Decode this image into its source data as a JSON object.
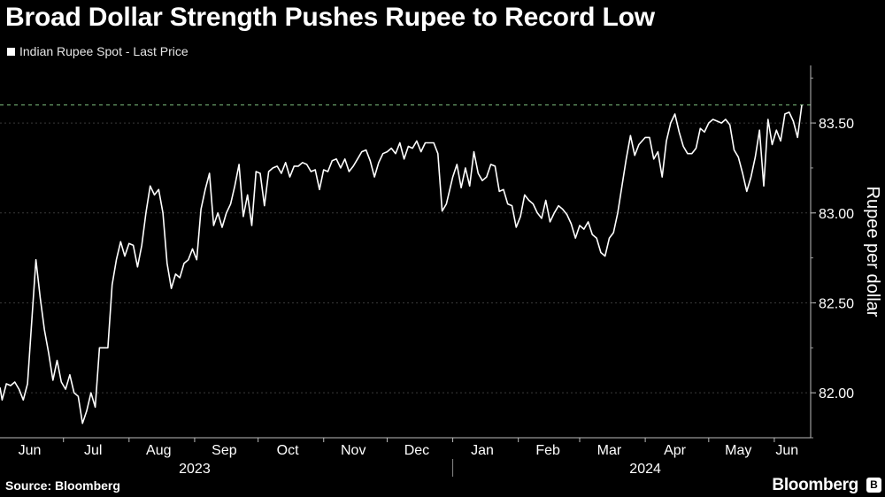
{
  "header": {
    "title": "Broad Dollar Strength Pushes Rupee to Record Low"
  },
  "legend": {
    "label": "Indian Rupee Spot - Last Price"
  },
  "footer": {
    "source": "Source: Bloomberg",
    "brand": "Bloomberg"
  },
  "colors": {
    "background": "#000000",
    "line": "#ffffff",
    "reference_line": "#7fbf7f",
    "gridline": "#3a3a3a"
  },
  "chart_data": {
    "type": "line",
    "title": "Broad Dollar Strength Pushes Rupee to Record Low",
    "series_name": "Indian Rupee Spot - Last Price",
    "ylabel": "Rupee per dollar",
    "xlabel": "",
    "ylim": [
      81.75,
      83.82
    ],
    "yticks": [
      82.0,
      82.5,
      83.0,
      83.5
    ],
    "ytick_labels": [
      "82.00",
      "82.50",
      "83.00",
      "83.50"
    ],
    "reference_line": 83.6,
    "x_start": "2023-06-01",
    "x_end": "2024-06-14",
    "month_ticks": [
      {
        "label": "Jun",
        "date": "2023-06-15"
      },
      {
        "label": "Jul",
        "date": "2023-07-15"
      },
      {
        "label": "Aug",
        "date": "2023-08-15"
      },
      {
        "label": "Sep",
        "date": "2023-09-15"
      },
      {
        "label": "Oct",
        "date": "2023-10-15"
      },
      {
        "label": "Nov",
        "date": "2023-11-15"
      },
      {
        "label": "Dec",
        "date": "2023-12-15"
      },
      {
        "label": "Jan",
        "date": "2024-01-15"
      },
      {
        "label": "Feb",
        "date": "2024-02-15"
      },
      {
        "label": "Mar",
        "date": "2024-03-15"
      },
      {
        "label": "Apr",
        "date": "2024-04-15"
      },
      {
        "label": "May",
        "date": "2024-05-15"
      },
      {
        "label": "Jun",
        "date": "2024-06-07"
      }
    ],
    "month_boundaries": [
      "2023-07-01",
      "2023-08-01",
      "2023-09-01",
      "2023-10-01",
      "2023-11-01",
      "2023-12-01",
      "2024-01-01",
      "2024-02-01",
      "2024-03-01",
      "2024-04-01",
      "2024-05-01",
      "2024-06-01"
    ],
    "year_labels": [
      {
        "label": "2023",
        "date": "2023-09-01"
      },
      {
        "label": "2024",
        "date": "2024-04-01"
      }
    ],
    "year_divider": "2024-01-01",
    "points": [
      [
        "2023-06-01",
        82.03
      ],
      [
        "2023-06-02",
        81.96
      ],
      [
        "2023-06-04",
        82.05
      ],
      [
        "2023-06-06",
        82.04
      ],
      [
        "2023-06-08",
        82.06
      ],
      [
        "2023-06-10",
        82.02
      ],
      [
        "2023-06-12",
        81.96
      ],
      [
        "2023-06-14",
        82.05
      ],
      [
        "2023-06-16",
        82.4
      ],
      [
        "2023-06-18",
        82.74
      ],
      [
        "2023-06-20",
        82.53
      ],
      [
        "2023-06-22",
        82.35
      ],
      [
        "2023-06-24",
        82.22
      ],
      [
        "2023-06-26",
        82.07
      ],
      [
        "2023-06-28",
        82.18
      ],
      [
        "2023-06-30",
        82.06
      ],
      [
        "2023-07-02",
        82.02
      ],
      [
        "2023-07-04",
        82.1
      ],
      [
        "2023-07-06",
        82.0
      ],
      [
        "2023-07-08",
        81.98
      ],
      [
        "2023-07-10",
        81.83
      ],
      [
        "2023-07-12",
        81.9
      ],
      [
        "2023-07-14",
        82.0
      ],
      [
        "2023-07-16",
        81.92
      ],
      [
        "2023-07-18",
        82.25
      ],
      [
        "2023-07-20",
        82.25
      ],
      [
        "2023-07-22",
        82.25
      ],
      [
        "2023-07-24",
        82.6
      ],
      [
        "2023-07-26",
        82.74
      ],
      [
        "2023-07-28",
        82.84
      ],
      [
        "2023-07-30",
        82.76
      ],
      [
        "2023-08-01",
        82.83
      ],
      [
        "2023-08-03",
        82.82
      ],
      [
        "2023-08-05",
        82.7
      ],
      [
        "2023-08-07",
        82.82
      ],
      [
        "2023-08-09",
        83.0
      ],
      [
        "2023-08-11",
        83.15
      ],
      [
        "2023-08-13",
        83.1
      ],
      [
        "2023-08-15",
        83.13
      ],
      [
        "2023-08-17",
        83.0
      ],
      [
        "2023-08-19",
        82.72
      ],
      [
        "2023-08-21",
        82.58
      ],
      [
        "2023-08-23",
        82.66
      ],
      [
        "2023-08-25",
        82.64
      ],
      [
        "2023-08-27",
        82.72
      ],
      [
        "2023-08-29",
        82.74
      ],
      [
        "2023-08-31",
        82.8
      ],
      [
        "2023-09-02",
        82.74
      ],
      [
        "2023-09-04",
        83.02
      ],
      [
        "2023-09-06",
        83.13
      ],
      [
        "2023-09-08",
        83.22
      ],
      [
        "2023-09-10",
        82.93
      ],
      [
        "2023-09-12",
        83.0
      ],
      [
        "2023-09-14",
        82.92
      ],
      [
        "2023-09-16",
        83.0
      ],
      [
        "2023-09-18",
        83.05
      ],
      [
        "2023-09-20",
        83.15
      ],
      [
        "2023-09-22",
        83.27
      ],
      [
        "2023-09-24",
        82.98
      ],
      [
        "2023-09-26",
        83.1
      ],
      [
        "2023-09-28",
        82.93
      ],
      [
        "2023-09-30",
        83.23
      ],
      [
        "2023-10-02",
        83.22
      ],
      [
        "2023-10-04",
        83.04
      ],
      [
        "2023-10-06",
        83.23
      ],
      [
        "2023-10-08",
        83.25
      ],
      [
        "2023-10-10",
        83.26
      ],
      [
        "2023-10-12",
        83.22
      ],
      [
        "2023-10-14",
        83.28
      ],
      [
        "2023-10-16",
        83.2
      ],
      [
        "2023-10-18",
        83.26
      ],
      [
        "2023-10-20",
        83.26
      ],
      [
        "2023-10-22",
        83.28
      ],
      [
        "2023-10-24",
        83.27
      ],
      [
        "2023-10-26",
        83.23
      ],
      [
        "2023-10-28",
        83.24
      ],
      [
        "2023-10-30",
        83.13
      ],
      [
        "2023-11-01",
        83.24
      ],
      [
        "2023-11-03",
        83.23
      ],
      [
        "2023-11-05",
        83.29
      ],
      [
        "2023-11-07",
        83.3
      ],
      [
        "2023-11-09",
        83.25
      ],
      [
        "2023-11-11",
        83.3
      ],
      [
        "2023-11-13",
        83.23
      ],
      [
        "2023-11-15",
        83.26
      ],
      [
        "2023-11-17",
        83.3
      ],
      [
        "2023-11-19",
        83.34
      ],
      [
        "2023-11-21",
        83.35
      ],
      [
        "2023-11-23",
        83.29
      ],
      [
        "2023-11-25",
        83.2
      ],
      [
        "2023-11-27",
        83.28
      ],
      [
        "2023-11-29",
        83.33
      ],
      [
        "2023-12-01",
        83.34
      ],
      [
        "2023-12-03",
        83.36
      ],
      [
        "2023-12-05",
        83.33
      ],
      [
        "2023-12-07",
        83.39
      ],
      [
        "2023-12-09",
        83.3
      ],
      [
        "2023-12-11",
        83.37
      ],
      [
        "2023-12-13",
        83.36
      ],
      [
        "2023-12-15",
        83.4
      ],
      [
        "2023-12-17",
        83.34
      ],
      [
        "2023-12-19",
        83.39
      ],
      [
        "2023-12-21",
        83.39
      ],
      [
        "2023-12-23",
        83.39
      ],
      [
        "2023-12-25",
        83.33
      ],
      [
        "2023-12-27",
        83.01
      ],
      [
        "2023-12-29",
        83.05
      ],
      [
        "2024-01-01",
        83.2
      ],
      [
        "2024-01-03",
        83.27
      ],
      [
        "2024-01-05",
        83.14
      ],
      [
        "2024-01-07",
        83.25
      ],
      [
        "2024-01-09",
        83.15
      ],
      [
        "2024-01-11",
        83.34
      ],
      [
        "2024-01-13",
        83.22
      ],
      [
        "2024-01-15",
        83.18
      ],
      [
        "2024-01-17",
        83.2
      ],
      [
        "2024-01-19",
        83.27
      ],
      [
        "2024-01-21",
        83.26
      ],
      [
        "2024-01-23",
        83.12
      ],
      [
        "2024-01-25",
        83.13
      ],
      [
        "2024-01-27",
        83.05
      ],
      [
        "2024-01-29",
        83.04
      ],
      [
        "2024-01-31",
        82.92
      ],
      [
        "2024-02-02",
        82.98
      ],
      [
        "2024-02-04",
        83.1
      ],
      [
        "2024-02-06",
        83.07
      ],
      [
        "2024-02-08",
        83.05
      ],
      [
        "2024-02-10",
        83.0
      ],
      [
        "2024-02-12",
        82.97
      ],
      [
        "2024-02-14",
        83.07
      ],
      [
        "2024-02-16",
        82.95
      ],
      [
        "2024-02-18",
        83.0
      ],
      [
        "2024-02-20",
        83.04
      ],
      [
        "2024-02-22",
        83.02
      ],
      [
        "2024-02-24",
        82.99
      ],
      [
        "2024-02-26",
        82.94
      ],
      [
        "2024-02-28",
        82.86
      ],
      [
        "2024-03-01",
        82.93
      ],
      [
        "2024-03-03",
        82.91
      ],
      [
        "2024-03-05",
        82.95
      ],
      [
        "2024-03-07",
        82.88
      ],
      [
        "2024-03-09",
        82.86
      ],
      [
        "2024-03-11",
        82.78
      ],
      [
        "2024-03-13",
        82.76
      ],
      [
        "2024-03-15",
        82.86
      ],
      [
        "2024-03-17",
        82.89
      ],
      [
        "2024-03-19",
        83.0
      ],
      [
        "2024-03-21",
        83.15
      ],
      [
        "2024-03-23",
        83.3
      ],
      [
        "2024-03-25",
        83.43
      ],
      [
        "2024-03-27",
        83.32
      ],
      [
        "2024-03-29",
        83.38
      ],
      [
        "2024-04-01",
        83.42
      ],
      [
        "2024-04-03",
        83.42
      ],
      [
        "2024-04-05",
        83.3
      ],
      [
        "2024-04-07",
        83.34
      ],
      [
        "2024-04-09",
        83.2
      ],
      [
        "2024-04-11",
        83.4
      ],
      [
        "2024-04-13",
        83.5
      ],
      [
        "2024-04-15",
        83.55
      ],
      [
        "2024-04-17",
        83.45
      ],
      [
        "2024-04-19",
        83.37
      ],
      [
        "2024-04-21",
        83.33
      ],
      [
        "2024-04-23",
        83.33
      ],
      [
        "2024-04-25",
        83.36
      ],
      [
        "2024-04-27",
        83.47
      ],
      [
        "2024-04-29",
        83.45
      ],
      [
        "2024-05-01",
        83.5
      ],
      [
        "2024-05-03",
        83.52
      ],
      [
        "2024-05-05",
        83.51
      ],
      [
        "2024-05-07",
        83.5
      ],
      [
        "2024-05-09",
        83.52
      ],
      [
        "2024-05-11",
        83.49
      ],
      [
        "2024-05-13",
        83.35
      ],
      [
        "2024-05-15",
        83.31
      ],
      [
        "2024-05-17",
        83.22
      ],
      [
        "2024-05-19",
        83.12
      ],
      [
        "2024-05-21",
        83.2
      ],
      [
        "2024-05-23",
        83.31
      ],
      [
        "2024-05-25",
        83.46
      ],
      [
        "2024-05-27",
        83.15
      ],
      [
        "2024-05-29",
        83.52
      ],
      [
        "2024-05-31",
        83.38
      ],
      [
        "2024-06-02",
        83.46
      ],
      [
        "2024-06-04",
        83.4
      ],
      [
        "2024-06-06",
        83.55
      ],
      [
        "2024-06-08",
        83.56
      ],
      [
        "2024-06-10",
        83.51
      ],
      [
        "2024-06-12",
        83.42
      ],
      [
        "2024-06-14",
        83.6
      ]
    ]
  }
}
